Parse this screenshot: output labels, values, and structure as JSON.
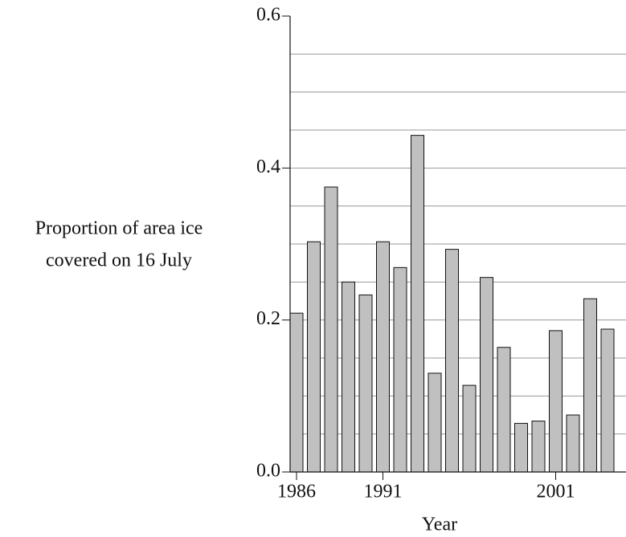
{
  "chart_data": {
    "type": "bar",
    "ylabel": [
      "Proportion of area ice",
      "covered on 16 July"
    ],
    "xlabel": "Year",
    "categories": [
      "1986",
      null,
      null,
      null,
      null,
      "1991",
      null,
      null,
      null,
      null,
      null,
      null,
      null,
      null,
      null,
      "2001",
      null,
      null,
      null
    ],
    "values": [
      0.209,
      0.303,
      0.375,
      0.25,
      0.233,
      0.303,
      0.269,
      0.443,
      0.13,
      0.293,
      0.114,
      0.256,
      0.164,
      0.064,
      0.067,
      0.186,
      0.075,
      0.228,
      0.188
    ],
    "color": "#c0c0c0",
    "ylim": [
      0,
      0.6
    ],
    "yticks": [
      {
        "value": 0,
        "label": "0.0"
      },
      0.2,
      0.4,
      0.6
    ],
    "minor_yticks": [
      0.05,
      0.1,
      0.15,
      0.25,
      0.3,
      0.35,
      0.45,
      0.5,
      0.55
    ],
    "grid": true
  }
}
